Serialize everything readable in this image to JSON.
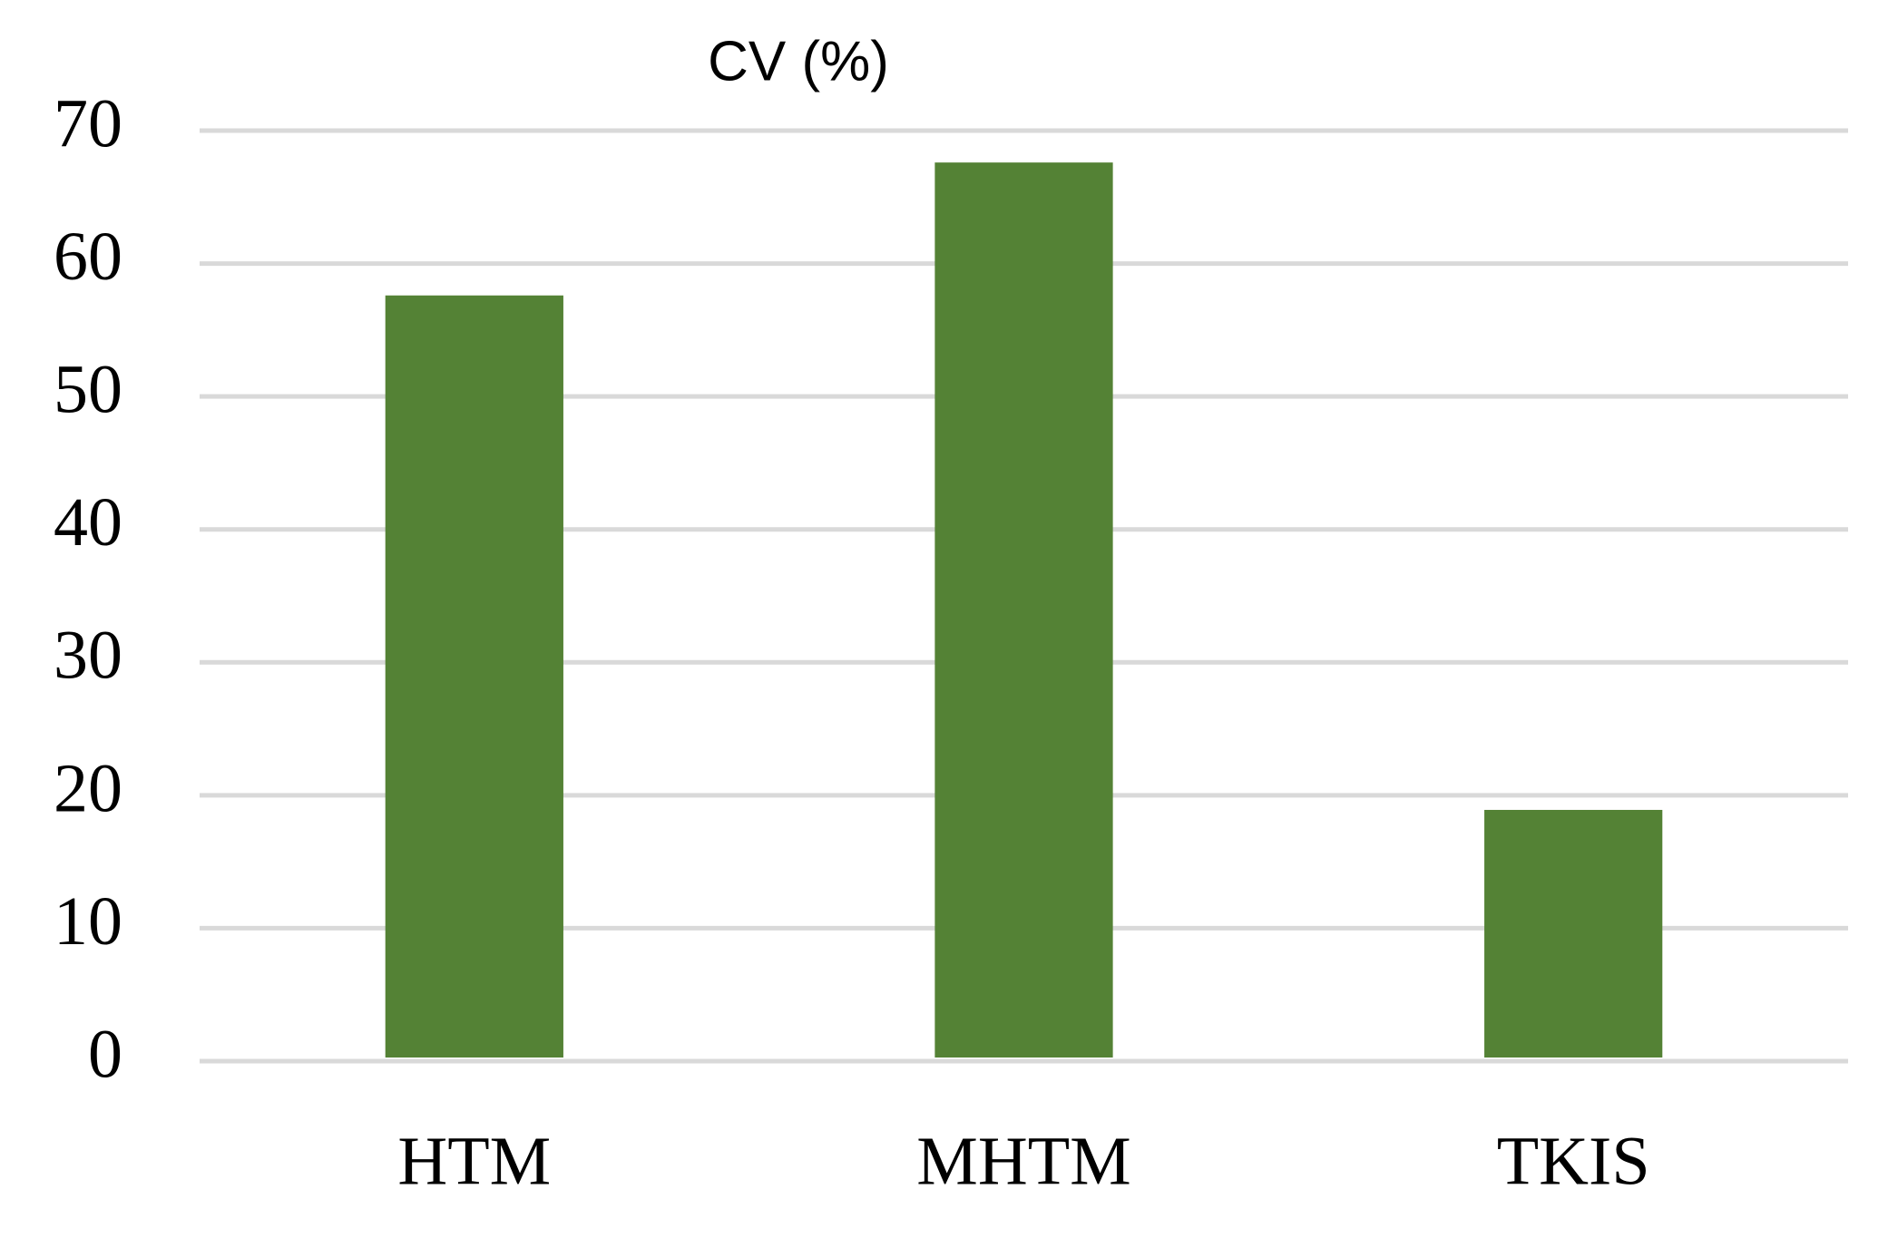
{
  "chart_data": {
    "type": "bar",
    "title": "CV (%)",
    "categories": [
      "HTM",
      "MHTM",
      "TKIS"
    ],
    "values": [
      57.6,
      67.6,
      18.9
    ],
    "color": "#548235",
    "ylim": [
      0,
      70
    ],
    "yticks": [
      0,
      10,
      20,
      30,
      40,
      50,
      60,
      70
    ],
    "grid": true
  }
}
